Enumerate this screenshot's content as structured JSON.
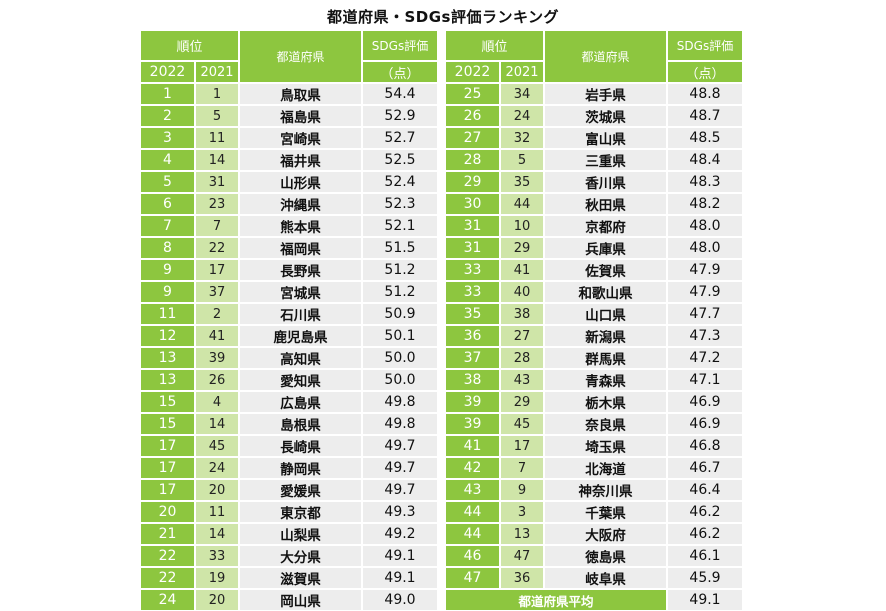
{
  "title": "都道府県・SDGs評価ランキング",
  "headers": {
    "rank": "順位",
    "y2022": "2022",
    "y2021": "2021",
    "prefecture": "都道府県",
    "score": "SDGs評価",
    "unit": "（点）"
  },
  "left_rows": [
    {
      "r22": "1",
      "r21": "1",
      "pref": "鳥取県",
      "score": "54.4"
    },
    {
      "r22": "2",
      "r21": "5",
      "pref": "福島県",
      "score": "52.9"
    },
    {
      "r22": "3",
      "r21": "11",
      "pref": "宮崎県",
      "score": "52.7"
    },
    {
      "r22": "4",
      "r21": "14",
      "pref": "福井県",
      "score": "52.5"
    },
    {
      "r22": "5",
      "r21": "31",
      "pref": "山形県",
      "score": "52.4"
    },
    {
      "r22": "6",
      "r21": "23",
      "pref": "沖縄県",
      "score": "52.3"
    },
    {
      "r22": "7",
      "r21": "7",
      "pref": "熊本県",
      "score": "52.1"
    },
    {
      "r22": "8",
      "r21": "22",
      "pref": "福岡県",
      "score": "51.5"
    },
    {
      "r22": "9",
      "r21": "17",
      "pref": "長野県",
      "score": "51.2"
    },
    {
      "r22": "9",
      "r21": "37",
      "pref": "宮城県",
      "score": "51.2"
    },
    {
      "r22": "11",
      "r21": "2",
      "pref": "石川県",
      "score": "50.9"
    },
    {
      "r22": "12",
      "r21": "41",
      "pref": "鹿児島県",
      "score": "50.1"
    },
    {
      "r22": "13",
      "r21": "39",
      "pref": "高知県",
      "score": "50.0"
    },
    {
      "r22": "13",
      "r21": "26",
      "pref": "愛知県",
      "score": "50.0"
    },
    {
      "r22": "15",
      "r21": "4",
      "pref": "広島県",
      "score": "49.8"
    },
    {
      "r22": "15",
      "r21": "14",
      "pref": "島根県",
      "score": "49.8"
    },
    {
      "r22": "17",
      "r21": "45",
      "pref": "長崎県",
      "score": "49.7"
    },
    {
      "r22": "17",
      "r21": "24",
      "pref": "静岡県",
      "score": "49.7"
    },
    {
      "r22": "17",
      "r21": "20",
      "pref": "愛媛県",
      "score": "49.7"
    },
    {
      "r22": "20",
      "r21": "11",
      "pref": "東京都",
      "score": "49.3"
    },
    {
      "r22": "21",
      "r21": "14",
      "pref": "山梨県",
      "score": "49.2"
    },
    {
      "r22": "22",
      "r21": "33",
      "pref": "大分県",
      "score": "49.1"
    },
    {
      "r22": "22",
      "r21": "19",
      "pref": "滋賀県",
      "score": "49.1"
    },
    {
      "r22": "24",
      "r21": "20",
      "pref": "岡山県",
      "score": "49.0"
    }
  ],
  "right_rows": [
    {
      "r22": "25",
      "r21": "34",
      "pref": "岩手県",
      "score": "48.8"
    },
    {
      "r22": "26",
      "r21": "24",
      "pref": "茨城県",
      "score": "48.7"
    },
    {
      "r22": "27",
      "r21": "32",
      "pref": "富山県",
      "score": "48.5"
    },
    {
      "r22": "28",
      "r21": "5",
      "pref": "三重県",
      "score": "48.4"
    },
    {
      "r22": "29",
      "r21": "35",
      "pref": "香川県",
      "score": "48.3"
    },
    {
      "r22": "30",
      "r21": "44",
      "pref": "秋田県",
      "score": "48.2"
    },
    {
      "r22": "31",
      "r21": "10",
      "pref": "京都府",
      "score": "48.0"
    },
    {
      "r22": "31",
      "r21": "29",
      "pref": "兵庫県",
      "score": "48.0"
    },
    {
      "r22": "33",
      "r21": "41",
      "pref": "佐賀県",
      "score": "47.9"
    },
    {
      "r22": "33",
      "r21": "40",
      "pref": "和歌山県",
      "score": "47.9"
    },
    {
      "r22": "35",
      "r21": "38",
      "pref": "山口県",
      "score": "47.7"
    },
    {
      "r22": "36",
      "r21": "27",
      "pref": "新潟県",
      "score": "47.3"
    },
    {
      "r22": "37",
      "r21": "28",
      "pref": "群馬県",
      "score": "47.2"
    },
    {
      "r22": "38",
      "r21": "43",
      "pref": "青森県",
      "score": "47.1"
    },
    {
      "r22": "39",
      "r21": "29",
      "pref": "栃木県",
      "score": "46.9"
    },
    {
      "r22": "39",
      "r21": "45",
      "pref": "奈良県",
      "score": "46.9"
    },
    {
      "r22": "41",
      "r21": "17",
      "pref": "埼玉県",
      "score": "46.8"
    },
    {
      "r22": "42",
      "r21": "7",
      "pref": "北海道",
      "score": "46.7"
    },
    {
      "r22": "43",
      "r21": "9",
      "pref": "神奈川県",
      "score": "46.4"
    },
    {
      "r22": "44",
      "r21": "3",
      "pref": "千葉県",
      "score": "46.2"
    },
    {
      "r22": "44",
      "r21": "13",
      "pref": "大阪府",
      "score": "46.2"
    },
    {
      "r22": "46",
      "r21": "47",
      "pref": "徳島県",
      "score": "46.1"
    },
    {
      "r22": "47",
      "r21": "36",
      "pref": "岐阜県",
      "score": "45.9"
    }
  ],
  "average": {
    "label": "都道府県平均",
    "score": "49.1"
  }
}
